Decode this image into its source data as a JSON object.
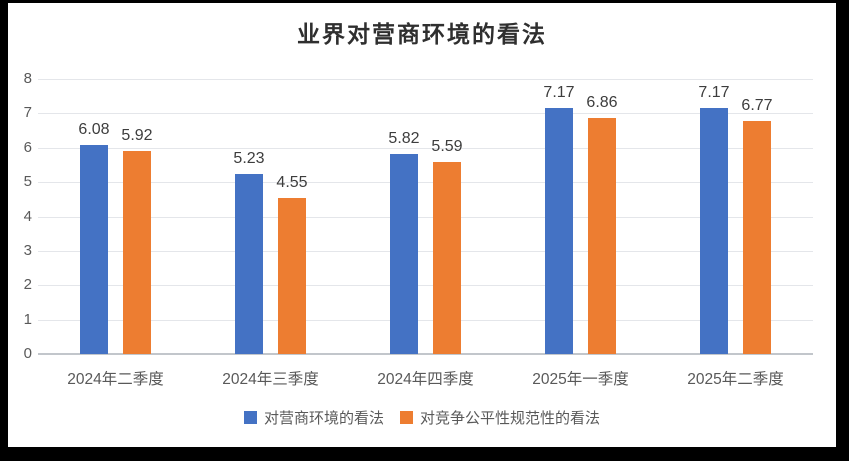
{
  "chart_data": {
    "type": "bar",
    "title": "业界对营商环境的看法",
    "categories": [
      "2024年二季度",
      "2024年三季度",
      "2024年四季度",
      "2025年一季度",
      "2025年二季度"
    ],
    "series": [
      {
        "name": "对营商环境的看法",
        "color": "#4472C4",
        "values": [
          6.08,
          5.23,
          5.82,
          7.17,
          7.17
        ]
      },
      {
        "name": "对竞争公平性规范性的看法",
        "color": "#ED7D31",
        "values": [
          5.92,
          4.55,
          5.59,
          6.86,
          6.77
        ]
      }
    ],
    "xlabel": "",
    "ylabel": "",
    "ylim": [
      0,
      8
    ],
    "yticks": [
      0,
      1,
      2,
      3,
      4,
      5,
      6,
      7,
      8
    ],
    "grid": true,
    "legend_position": "bottom",
    "data_labels_decimals": 2
  },
  "colors": {
    "frame_border": "#000000",
    "background": "#ffffff",
    "gridline": "#e4e6ea",
    "axis_line": "#c2c6cb",
    "tick_text": "#595959",
    "label_text": "#3d3d3d",
    "title_text": "#2f2f2f"
  }
}
